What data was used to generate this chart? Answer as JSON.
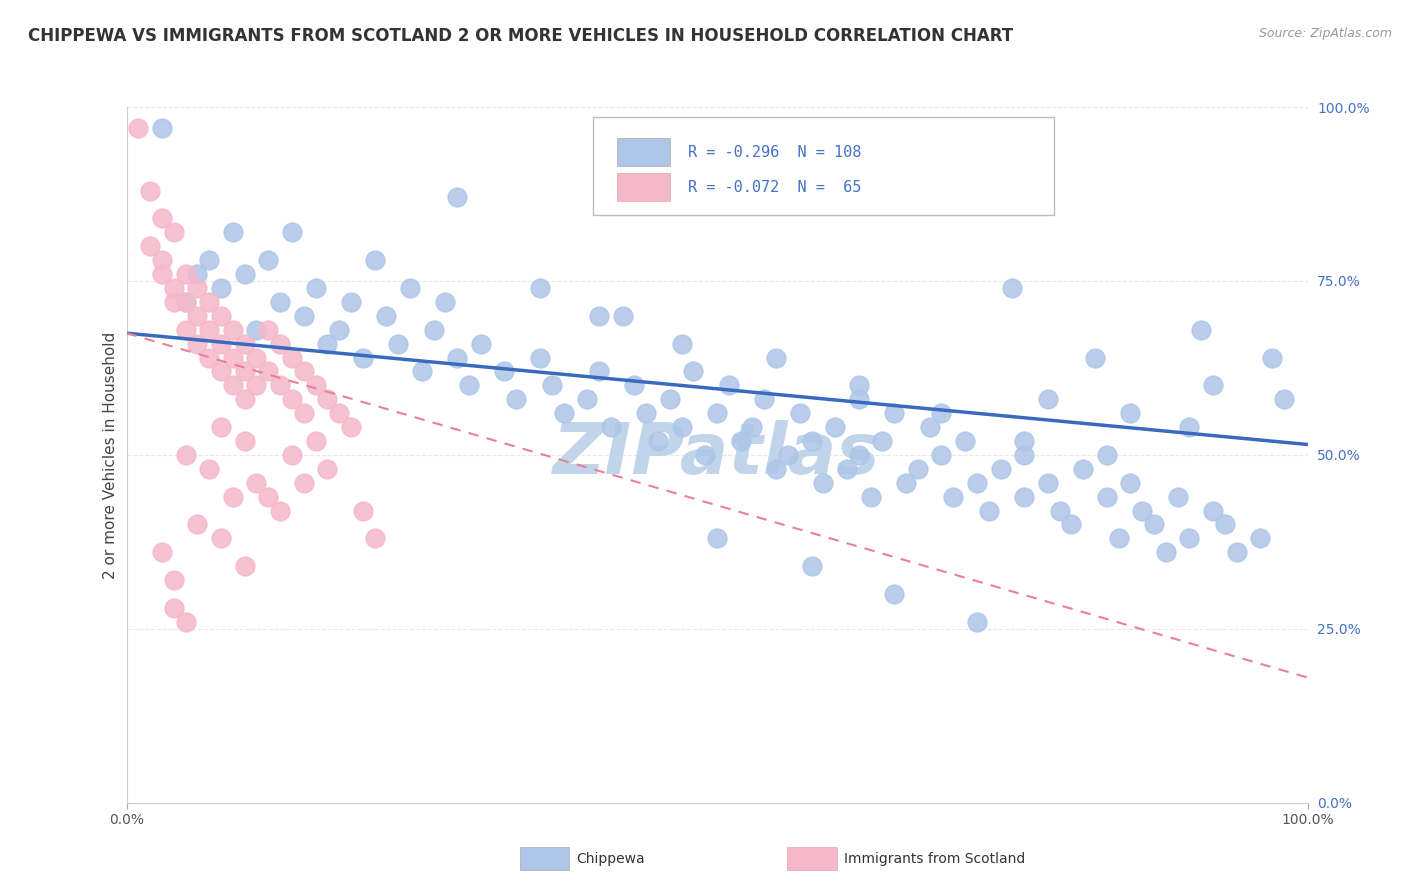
{
  "title": "CHIPPEWA VS IMMIGRANTS FROM SCOTLAND 2 OR MORE VEHICLES IN HOUSEHOLD CORRELATION CHART",
  "source": "Source: ZipAtlas.com",
  "ylabel": "2 or more Vehicles in Household",
  "xlim": [
    0.0,
    1.0
  ],
  "ylim": [
    0.0,
    1.0
  ],
  "blue_R": "-0.296",
  "blue_N": "108",
  "pink_R": "-0.072",
  "pink_N": "65",
  "blue_color": "#aec6e8",
  "pink_color": "#f5b8cb",
  "blue_line_color": "#3a6abf",
  "pink_line_color": "#e88098",
  "blue_line_x0": 0.0,
  "blue_line_y0": 0.675,
  "blue_line_x1": 1.0,
  "blue_line_y1": 0.515,
  "pink_line_x0": 0.0,
  "pink_line_y0": 0.675,
  "pink_line_x1": 1.0,
  "pink_line_y1": 0.18,
  "blue_scatter": [
    [
      0.03,
      0.97
    ],
    [
      0.28,
      0.87
    ],
    [
      0.09,
      0.82
    ],
    [
      0.14,
      0.82
    ],
    [
      0.07,
      0.78
    ],
    [
      0.12,
      0.78
    ],
    [
      0.21,
      0.78
    ],
    [
      0.06,
      0.76
    ],
    [
      0.1,
      0.76
    ],
    [
      0.08,
      0.74
    ],
    [
      0.16,
      0.74
    ],
    [
      0.24,
      0.74
    ],
    [
      0.05,
      0.72
    ],
    [
      0.13,
      0.72
    ],
    [
      0.19,
      0.72
    ],
    [
      0.27,
      0.72
    ],
    [
      0.15,
      0.7
    ],
    [
      0.22,
      0.7
    ],
    [
      0.11,
      0.68
    ],
    [
      0.18,
      0.68
    ],
    [
      0.26,
      0.68
    ],
    [
      0.17,
      0.66
    ],
    [
      0.23,
      0.66
    ],
    [
      0.3,
      0.66
    ],
    [
      0.2,
      0.64
    ],
    [
      0.28,
      0.64
    ],
    [
      0.35,
      0.64
    ],
    [
      0.25,
      0.62
    ],
    [
      0.32,
      0.62
    ],
    [
      0.4,
      0.62
    ],
    [
      0.48,
      0.62
    ],
    [
      0.29,
      0.6
    ],
    [
      0.36,
      0.6
    ],
    [
      0.43,
      0.6
    ],
    [
      0.51,
      0.6
    ],
    [
      0.33,
      0.58
    ],
    [
      0.39,
      0.58
    ],
    [
      0.46,
      0.58
    ],
    [
      0.54,
      0.58
    ],
    [
      0.62,
      0.58
    ],
    [
      0.37,
      0.56
    ],
    [
      0.44,
      0.56
    ],
    [
      0.5,
      0.56
    ],
    [
      0.57,
      0.56
    ],
    [
      0.65,
      0.56
    ],
    [
      0.41,
      0.54
    ],
    [
      0.47,
      0.54
    ],
    [
      0.53,
      0.54
    ],
    [
      0.6,
      0.54
    ],
    [
      0.68,
      0.54
    ],
    [
      0.45,
      0.52
    ],
    [
      0.52,
      0.52
    ],
    [
      0.58,
      0.52
    ],
    [
      0.64,
      0.52
    ],
    [
      0.71,
      0.52
    ],
    [
      0.49,
      0.5
    ],
    [
      0.56,
      0.5
    ],
    [
      0.62,
      0.5
    ],
    [
      0.69,
      0.5
    ],
    [
      0.76,
      0.5
    ],
    [
      0.55,
      0.48
    ],
    [
      0.61,
      0.48
    ],
    [
      0.67,
      0.48
    ],
    [
      0.74,
      0.48
    ],
    [
      0.81,
      0.48
    ],
    [
      0.59,
      0.46
    ],
    [
      0.66,
      0.46
    ],
    [
      0.72,
      0.46
    ],
    [
      0.78,
      0.46
    ],
    [
      0.85,
      0.46
    ],
    [
      0.63,
      0.44
    ],
    [
      0.7,
      0.44
    ],
    [
      0.76,
      0.44
    ],
    [
      0.83,
      0.44
    ],
    [
      0.89,
      0.44
    ],
    [
      0.73,
      0.42
    ],
    [
      0.79,
      0.42
    ],
    [
      0.86,
      0.42
    ],
    [
      0.92,
      0.42
    ],
    [
      0.8,
      0.4
    ],
    [
      0.87,
      0.4
    ],
    [
      0.93,
      0.4
    ],
    [
      0.84,
      0.38
    ],
    [
      0.9,
      0.38
    ],
    [
      0.96,
      0.38
    ],
    [
      0.88,
      0.36
    ],
    [
      0.94,
      0.36
    ],
    [
      0.91,
      0.68
    ],
    [
      0.97,
      0.64
    ],
    [
      0.75,
      0.74
    ],
    [
      0.82,
      0.64
    ],
    [
      0.5,
      0.38
    ],
    [
      0.58,
      0.34
    ],
    [
      0.65,
      0.3
    ],
    [
      0.72,
      0.26
    ],
    [
      0.78,
      0.58
    ],
    [
      0.85,
      0.56
    ],
    [
      0.92,
      0.6
    ],
    [
      0.98,
      0.58
    ],
    [
      0.4,
      0.7
    ],
    [
      0.47,
      0.66
    ],
    [
      0.55,
      0.64
    ],
    [
      0.62,
      0.6
    ],
    [
      0.69,
      0.56
    ],
    [
      0.76,
      0.52
    ],
    [
      0.83,
      0.5
    ],
    [
      0.9,
      0.54
    ],
    [
      0.35,
      0.74
    ],
    [
      0.42,
      0.7
    ]
  ],
  "pink_scatter": [
    [
      0.01,
      0.97
    ],
    [
      0.02,
      0.88
    ],
    [
      0.03,
      0.84
    ],
    [
      0.04,
      0.82
    ],
    [
      0.02,
      0.8
    ],
    [
      0.03,
      0.78
    ],
    [
      0.03,
      0.76
    ],
    [
      0.04,
      0.74
    ],
    [
      0.04,
      0.72
    ],
    [
      0.05,
      0.76
    ],
    [
      0.05,
      0.72
    ],
    [
      0.05,
      0.68
    ],
    [
      0.06,
      0.74
    ],
    [
      0.06,
      0.7
    ],
    [
      0.06,
      0.66
    ],
    [
      0.07,
      0.72
    ],
    [
      0.07,
      0.68
    ],
    [
      0.07,
      0.64
    ],
    [
      0.08,
      0.7
    ],
    [
      0.08,
      0.66
    ],
    [
      0.08,
      0.62
    ],
    [
      0.09,
      0.68
    ],
    [
      0.09,
      0.64
    ],
    [
      0.09,
      0.6
    ],
    [
      0.1,
      0.66
    ],
    [
      0.1,
      0.62
    ],
    [
      0.1,
      0.58
    ],
    [
      0.11,
      0.64
    ],
    [
      0.11,
      0.6
    ],
    [
      0.12,
      0.68
    ],
    [
      0.12,
      0.62
    ],
    [
      0.13,
      0.66
    ],
    [
      0.13,
      0.6
    ],
    [
      0.14,
      0.64
    ],
    [
      0.14,
      0.58
    ],
    [
      0.15,
      0.62
    ],
    [
      0.15,
      0.56
    ],
    [
      0.16,
      0.6
    ],
    [
      0.17,
      0.58
    ],
    [
      0.18,
      0.56
    ],
    [
      0.19,
      0.54
    ],
    [
      0.03,
      0.36
    ],
    [
      0.04,
      0.32
    ],
    [
      0.06,
      0.4
    ],
    [
      0.08,
      0.38
    ],
    [
      0.1,
      0.34
    ],
    [
      0.12,
      0.44
    ],
    [
      0.13,
      0.42
    ],
    [
      0.15,
      0.46
    ],
    [
      0.05,
      0.5
    ],
    [
      0.07,
      0.48
    ],
    [
      0.09,
      0.44
    ],
    [
      0.11,
      0.46
    ],
    [
      0.14,
      0.5
    ],
    [
      0.04,
      0.28
    ],
    [
      0.05,
      0.26
    ],
    [
      0.2,
      0.42
    ],
    [
      0.21,
      0.38
    ],
    [
      0.16,
      0.52
    ],
    [
      0.17,
      0.48
    ],
    [
      0.08,
      0.54
    ],
    [
      0.1,
      0.52
    ]
  ],
  "watermark": "ZIPatlas",
  "watermark_color": "#c0d4ea",
  "background_color": "#ffffff",
  "title_fontsize": 12,
  "label_fontsize": 11,
  "tick_color": "#4472c4",
  "grid_color": "#e8e8e8"
}
